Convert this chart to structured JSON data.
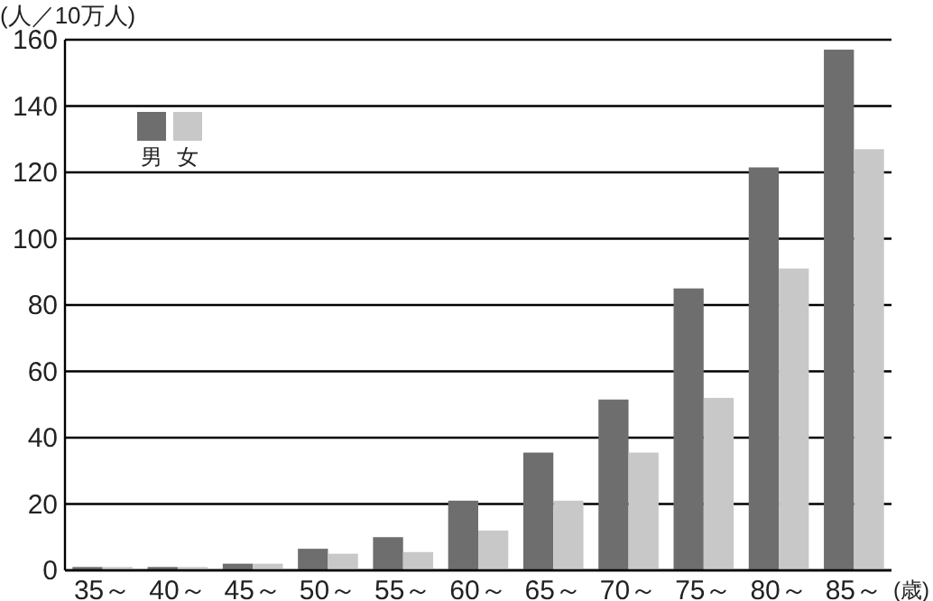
{
  "chart_data": {
    "type": "bar",
    "ylabel": "(人／10万人)",
    "xlabel": "(歳)",
    "categories": [
      "35～",
      "40～",
      "45～",
      "50～",
      "55～",
      "60～",
      "65～",
      "70～",
      "75～",
      "80～",
      "85～"
    ],
    "series": [
      {
        "name": "男",
        "color": "#6e6e6e",
        "values": [
          1,
          1,
          2,
          6.5,
          10,
          21,
          35.5,
          51.5,
          85,
          121.5,
          157
        ]
      },
      {
        "name": "女",
        "color": "#c8c8c8",
        "values": [
          1,
          1,
          2,
          5,
          5.5,
          12,
          21,
          35.5,
          52,
          91,
          127
        ]
      }
    ],
    "ylim": [
      0,
      160
    ],
    "yticks": [
      0,
      20,
      40,
      60,
      80,
      100,
      120,
      140,
      160
    ],
    "grid": "y",
    "legend": "top left"
  }
}
